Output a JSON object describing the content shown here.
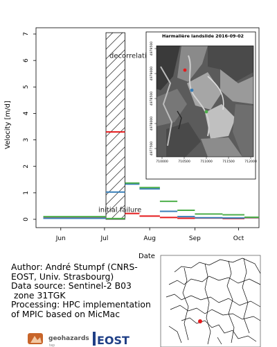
{
  "chart_data": {
    "type": "line",
    "title": "",
    "xlabel": "Date",
    "ylabel": "Velocity [m/d]",
    "ylim": [
      0,
      7
    ],
    "yticks": [
      0,
      1,
      2,
      3,
      4,
      5,
      6,
      7
    ],
    "xticks": [
      "Jun",
      "Jul",
      "Aug",
      "Sep",
      "Oct"
    ],
    "xlim": [
      "2016-05-15",
      "2016-10-15"
    ],
    "grid": false,
    "legend": "none",
    "annotations": {
      "top": "decorrelation",
      "bottom": "initial failure"
    },
    "hatched_period": [
      "2016-07-02",
      "2016-07-15"
    ],
    "series": [
      {
        "color": "#e41a1c",
        "segments": [
          {
            "x": [
              "2016-05-20",
              "2016-07-02"
            ],
            "y": 0.05
          },
          {
            "x": [
              "2016-07-02",
              "2016-07-15"
            ],
            "y": 3.3
          },
          {
            "x": [
              "2016-07-15",
              "2016-07-25"
            ],
            "y": 0.22
          },
          {
            "x": [
              "2016-07-25",
              "2016-08-08"
            ],
            "y": 0.12
          },
          {
            "x": [
              "2016-08-08",
              "2016-08-20"
            ],
            "y": 0.07
          },
          {
            "x": [
              "2016-08-20",
              "2016-09-01"
            ],
            "y": 0.04
          },
          {
            "x": [
              "2016-09-01",
              "2016-09-20"
            ],
            "y": 0.05
          },
          {
            "x": [
              "2016-09-20",
              "2016-10-05"
            ],
            "y": 0.03
          },
          {
            "x": [
              "2016-10-05",
              "2016-10-15"
            ],
            "y": 0.06
          }
        ]
      },
      {
        "color": "#377eb8",
        "segments": [
          {
            "x": [
              "2016-05-20",
              "2016-07-02"
            ],
            "y": 0.04
          },
          {
            "x": [
              "2016-07-02",
              "2016-07-15"
            ],
            "y": 1.03
          },
          {
            "x": [
              "2016-07-15",
              "2016-07-25"
            ],
            "y": 1.33
          },
          {
            "x": [
              "2016-07-25",
              "2016-08-08"
            ],
            "y": 1.15
          },
          {
            "x": [
              "2016-08-08",
              "2016-08-20"
            ],
            "y": 0.3
          },
          {
            "x": [
              "2016-08-20",
              "2016-09-01"
            ],
            "y": 0.1
          },
          {
            "x": [
              "2016-09-01",
              "2016-09-20"
            ],
            "y": 0.06
          },
          {
            "x": [
              "2016-09-20",
              "2016-10-05"
            ],
            "y": 0.05
          },
          {
            "x": [
              "2016-10-05",
              "2016-10-15"
            ],
            "y": 0.07
          }
        ]
      },
      {
        "color": "#4daf4a",
        "segments": [
          {
            "x": [
              "2016-05-20",
              "2016-07-02"
            ],
            "y": 0.1
          },
          {
            "x": [
              "2016-07-02",
              "2016-07-15"
            ],
            "y": 0.03
          },
          {
            "x": [
              "2016-07-15",
              "2016-07-25"
            ],
            "y": 1.37
          },
          {
            "x": [
              "2016-07-25",
              "2016-08-08"
            ],
            "y": 1.2
          },
          {
            "x": [
              "2016-08-08",
              "2016-08-20"
            ],
            "y": 0.68
          },
          {
            "x": [
              "2016-08-20",
              "2016-09-01"
            ],
            "y": 0.34
          },
          {
            "x": [
              "2016-09-01",
              "2016-09-20"
            ],
            "y": 0.2
          },
          {
            "x": [
              "2016-09-20",
              "2016-10-05"
            ],
            "y": 0.17
          },
          {
            "x": [
              "2016-10-05",
              "2016-10-15"
            ],
            "y": 0.08
          }
        ]
      }
    ]
  },
  "inset": {
    "title": "Harmalière landslide 2016-09-02",
    "x_ticks": [
      "710000",
      "710500",
      "711000",
      "711500",
      "712000"
    ],
    "y_ticks": [
      "4977500",
      "4978000",
      "4978500",
      "4979000",
      "4979500"
    ],
    "points": [
      {
        "color": "#e41a1c"
      },
      {
        "color": "#377eb8"
      },
      {
        "color": "#4daf4a"
      }
    ]
  },
  "credits": {
    "line1": "Author: André Stumpf (CNRS-",
    "line2": "EOST, Univ. Strasbourg)",
    "line3": "Data source: Sentinel-2 B03",
    "line4": " zone 31TGK",
    "line5": "Processing: HPC implementation",
    "line6": "of MPIC based on MicMac"
  },
  "logos": {
    "geohazards": "geohazards",
    "geohazards_sub": "tep",
    "eost": "EOST"
  },
  "map": {
    "marker_color": "#e41a1c"
  }
}
